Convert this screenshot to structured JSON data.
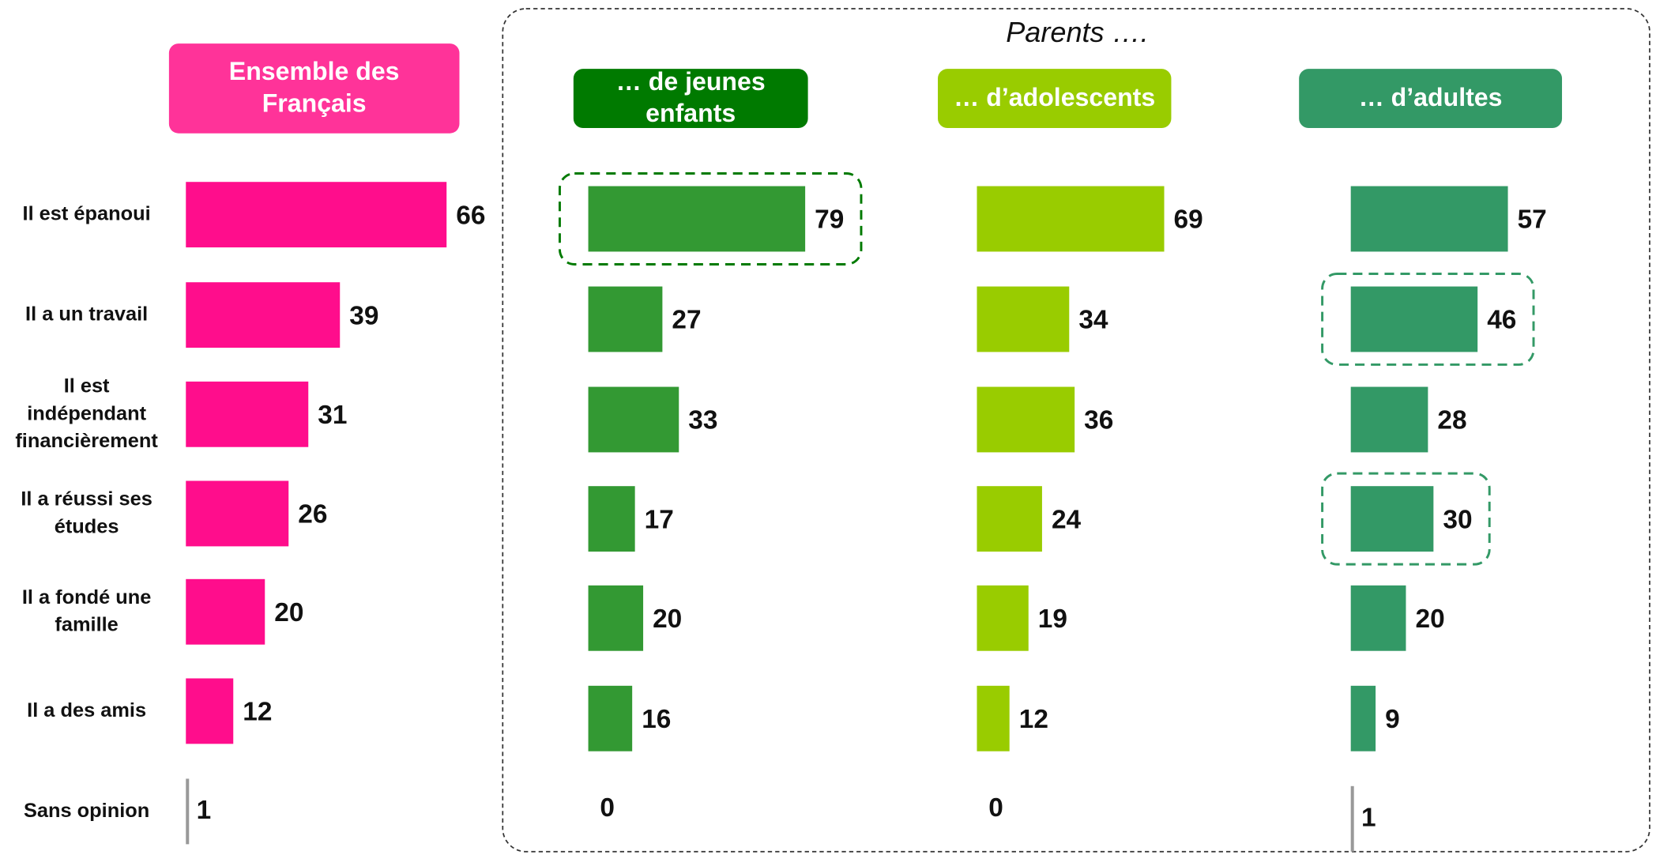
{
  "group_title": "Parents ….",
  "chart_data": [
    {
      "type": "bar",
      "title": "Ensemble des\nFrançais",
      "header_color": "#ff3399",
      "color": "#ff0d8c",
      "categories": [
        "Il est épanoui",
        "Il a un travail",
        "Il est\nindépendant\nfinancièrement",
        "Il a réussi ses\nétudes",
        "Il a fondé une\nfamille",
        "Il a des amis",
        "Sans opinion"
      ],
      "values": [
        66,
        39,
        31,
        26,
        20,
        12,
        1
      ],
      "highlight": []
    },
    {
      "type": "bar",
      "title": "… de jeunes\nenfants",
      "header_color": "#007a00",
      "color": "#339933",
      "values": [
        79,
        27,
        33,
        17,
        20,
        16,
        0
      ],
      "highlight": [
        0
      ]
    },
    {
      "type": "bar",
      "title": "… d’adolescents",
      "header_color": "#99cc00",
      "color": "#99cc00",
      "values": [
        69,
        34,
        36,
        24,
        19,
        12,
        0
      ],
      "highlight": []
    },
    {
      "type": "bar",
      "title": "… d’adultes",
      "header_color": "#339966",
      "color": "#339966",
      "values": [
        57,
        46,
        28,
        30,
        20,
        9,
        1
      ],
      "highlight": [
        1,
        3
      ]
    }
  ]
}
